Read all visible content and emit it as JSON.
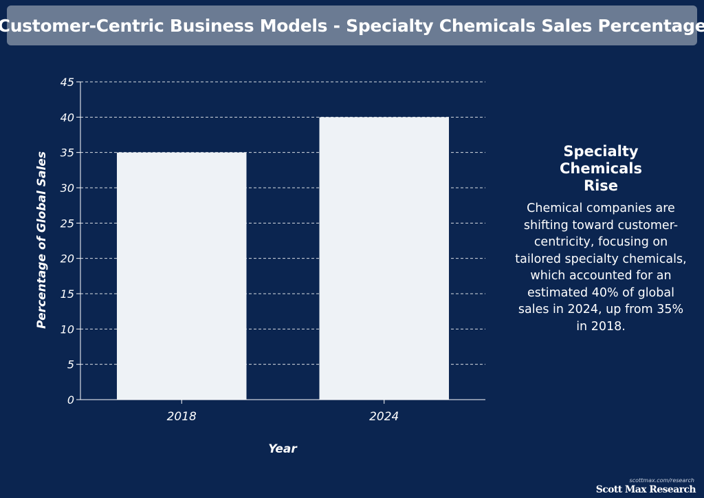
{
  "header": {
    "title": "Customer-Centric Business Models - Specialty Chemicals Sales Percentage"
  },
  "chart_data": {
    "type": "bar",
    "categories": [
      "2018",
      "2024"
    ],
    "values": [
      35,
      40
    ],
    "xlabel": "Year",
    "ylabel": "Percentage of Global Sales",
    "ylim": [
      0,
      45
    ],
    "yticks": [
      0,
      5,
      10,
      15,
      20,
      25,
      30,
      35,
      40,
      45
    ],
    "grid": true,
    "bar_color": "#eef2f6",
    "grid_color": "#ffffff"
  },
  "sidebar": {
    "heading": "Specialty Chemicals Rise",
    "body": "Chemical companies are shifting toward customer-centricity, focusing on tailored specialty chemicals, which accounted for an estimated 40% of global sales in 2024, up from 35% in 2018."
  },
  "credit": {
    "url": "scottmax.com/research",
    "brand": "Scott Max Research"
  },
  "colors": {
    "background": "#0b2550",
    "title_bar": "#6b7b93"
  }
}
